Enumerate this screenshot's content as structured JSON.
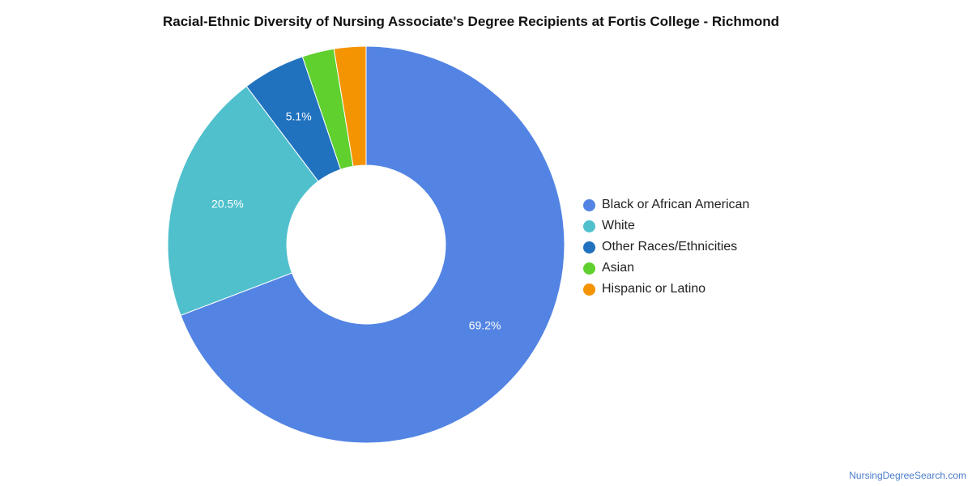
{
  "chart_data": {
    "type": "pie",
    "title": "Racial-Ethnic Diversity of Nursing Associate's Degree Recipients at Fortis College - Richmond",
    "donut": true,
    "legend_position": "right",
    "slices": [
      {
        "label": "Black or African American",
        "value": 69.2,
        "color": "#5384e3",
        "data_label": "69.2%"
      },
      {
        "label": "White",
        "value": 20.5,
        "color": "#50c0cd",
        "data_label": "20.5%"
      },
      {
        "label": "Other Races/Ethnicities",
        "value": 5.1,
        "color": "#2072bf",
        "data_label": "5.1%"
      },
      {
        "label": "Asian",
        "value": 2.6,
        "color": "#5fd02e",
        "data_label": ""
      },
      {
        "label": "Hispanic or Latino",
        "value": 2.6,
        "color": "#f59403",
        "data_label": ""
      }
    ]
  },
  "footer": {
    "source": "NursingDegreeSearch.com"
  }
}
